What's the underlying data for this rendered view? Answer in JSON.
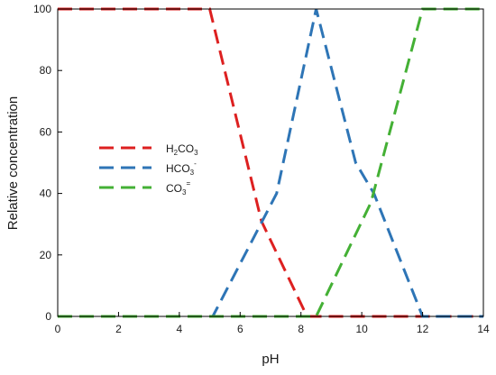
{
  "chart_data": {
    "type": "line",
    "title": "",
    "xlabel": "pH",
    "ylabel": "Relative concentration",
    "xlim": [
      0,
      14
    ],
    "ylim": [
      0,
      100
    ],
    "xticks": [
      0,
      2,
      4,
      6,
      8,
      10,
      12,
      14
    ],
    "yticks": [
      0,
      20,
      40,
      60,
      80,
      100
    ],
    "grid": false,
    "legend_position": "center-left",
    "line_style": "dashed",
    "series": [
      {
        "name": "H2CO3",
        "label_parts": {
          "base": "H",
          "sub1": "2",
          "rest": "CO",
          "sub2": "3",
          "sup": ""
        },
        "color": "#dd2020",
        "x": [
          0,
          5.0,
          6.7,
          8.2,
          14
        ],
        "y": [
          100,
          100,
          31,
          0,
          0
        ]
      },
      {
        "name": "HCO3-",
        "label_parts": {
          "base": "HCO",
          "sub1": "3",
          "rest": "",
          "sub2": "",
          "sup": "-"
        },
        "color": "#2e75b6",
        "x": [
          0,
          5.1,
          7.2,
          8.5,
          9.8,
          10.4,
          12.0,
          14
        ],
        "y": [
          0,
          0,
          40,
          100,
          50,
          40,
          0,
          0
        ]
      },
      {
        "name": "CO3=",
        "label_parts": {
          "base": "CO",
          "sub1": "3",
          "rest": "",
          "sub2": "",
          "sup": "="
        },
        "color": "#44b035",
        "x": [
          0,
          8.5,
          10.3,
          12.0,
          14
        ],
        "y": [
          0,
          0,
          37,
          100,
          100
        ]
      }
    ]
  }
}
